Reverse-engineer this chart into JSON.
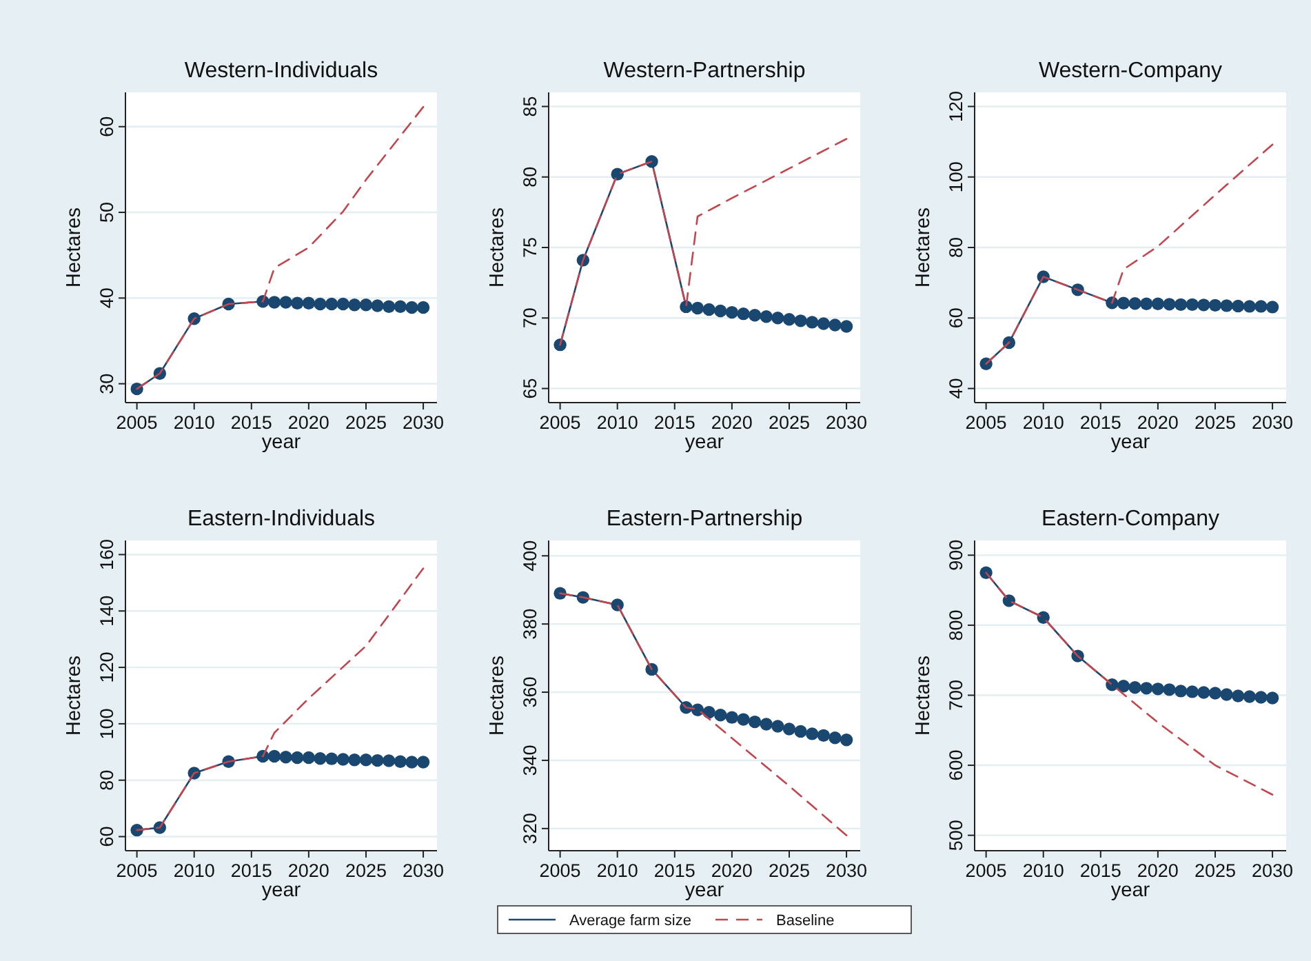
{
  "chart_data": [
    {
      "type": "line",
      "title": "Western-Individuals",
      "xlabel": "year",
      "ylabel": "Hectares",
      "xlim": [
        2004,
        2031.2
      ],
      "xticks": [
        2005,
        2010,
        2015,
        2020,
        2025,
        2030
      ],
      "ylim": [
        27.8,
        64
      ],
      "yticks": [
        30,
        40,
        50,
        60
      ],
      "grid": "y",
      "series": [
        {
          "color": "#1a476f",
          "marker": "circle",
          "line_style": "solid",
          "x": [
            2005,
            2007,
            2010,
            2013,
            2016,
            2017,
            2018,
            2019,
            2020,
            2021,
            2022,
            2023,
            2024,
            2025,
            2026,
            2027,
            2028,
            2029,
            2030
          ],
          "values": [
            29.4,
            31.2,
            37.6,
            39.3,
            39.6,
            39.5,
            39.5,
            39.4,
            39.4,
            39.3,
            39.3,
            39.3,
            39.2,
            39.2,
            39.1,
            39.0,
            39.0,
            38.9,
            38.9
          ]
        },
        {
          "color": "#c1464e",
          "marker": "none",
          "line_style": "dashed",
          "x": [
            2005,
            2007,
            2010,
            2013,
            2016,
            2017,
            2020,
            2023,
            2025,
            2030
          ],
          "values": [
            29.4,
            31.2,
            37.6,
            39.3,
            39.6,
            43.5,
            45.9,
            50.1,
            53.8,
            62.3
          ]
        }
      ]
    },
    {
      "type": "line",
      "title": "Western-Partnership",
      "xlabel": "year",
      "ylabel": "Hectares",
      "xlim": [
        2004,
        2031.2
      ],
      "xticks": [
        2005,
        2010,
        2015,
        2020,
        2025,
        2030
      ],
      "ylim": [
        64,
        86
      ],
      "yticks": [
        65,
        70,
        75,
        80,
        85
      ],
      "grid": "y",
      "series": [
        {
          "color": "#1a476f",
          "marker": "circle",
          "line_style": "solid",
          "x": [
            2005,
            2007,
            2010,
            2013,
            2016,
            2017,
            2018,
            2019,
            2020,
            2021,
            2022,
            2023,
            2024,
            2025,
            2026,
            2027,
            2028,
            2029,
            2030
          ],
          "values": [
            68.1,
            74.1,
            80.2,
            81.1,
            70.8,
            70.7,
            70.6,
            70.5,
            70.4,
            70.3,
            70.2,
            70.1,
            70.0,
            69.9,
            69.8,
            69.7,
            69.6,
            69.5,
            69.4
          ]
        },
        {
          "color": "#c1464e",
          "marker": "none",
          "line_style": "dashed",
          "x": [
            2005,
            2007,
            2010,
            2013,
            2016,
            2017,
            2020,
            2025,
            2030
          ],
          "values": [
            68.1,
            74.1,
            80.2,
            81.1,
            70.8,
            77.2,
            78.5,
            80.6,
            82.7
          ]
        }
      ]
    },
    {
      "type": "line",
      "title": "Western-Company",
      "xlabel": "year",
      "ylabel": "Hectares",
      "xlim": [
        2004,
        2031.2
      ],
      "xticks": [
        2005,
        2010,
        2015,
        2020,
        2025,
        2030
      ],
      "ylim": [
        36,
        124
      ],
      "yticks": [
        40,
        60,
        80,
        100,
        120
      ],
      "grid": "y",
      "series": [
        {
          "color": "#1a476f",
          "marker": "circle",
          "line_style": "solid",
          "x": [
            2005,
            2007,
            2010,
            2013,
            2016,
            2017,
            2018,
            2019,
            2020,
            2021,
            2022,
            2023,
            2024,
            2025,
            2026,
            2027,
            2028,
            2029,
            2030
          ],
          "values": [
            47.0,
            53.0,
            71.7,
            68.0,
            64.3,
            64.2,
            64.1,
            64.0,
            64.0,
            63.9,
            63.8,
            63.8,
            63.7,
            63.6,
            63.5,
            63.4,
            63.3,
            63.3,
            63.1
          ]
        },
        {
          "color": "#c1464e",
          "marker": "none",
          "line_style": "dashed",
          "x": [
            2005,
            2007,
            2010,
            2013,
            2016,
            2017,
            2020,
            2025,
            2030
          ],
          "values": [
            47.0,
            53.0,
            71.7,
            68.0,
            64.3,
            73.8,
            80.3,
            94.9,
            109.2
          ]
        }
      ]
    },
    {
      "type": "line",
      "title": "Eastern-Individuals",
      "xlabel": "year",
      "ylabel": "Hectares",
      "xlim": [
        2004,
        2031.2
      ],
      "xticks": [
        2005,
        2010,
        2015,
        2020,
        2025,
        2030
      ],
      "ylim": [
        55,
        165
      ],
      "yticks": [
        60,
        80,
        100,
        120,
        140,
        160
      ],
      "grid": "y",
      "series": [
        {
          "color": "#1a476f",
          "marker": "circle",
          "line_style": "solid",
          "x": [
            2005,
            2007,
            2010,
            2013,
            2016,
            2017,
            2018,
            2019,
            2020,
            2021,
            2022,
            2023,
            2024,
            2025,
            2026,
            2027,
            2028,
            2029,
            2030
          ],
          "values": [
            62.3,
            63.2,
            82.5,
            86.6,
            88.5,
            88.5,
            88.2,
            88.0,
            88.0,
            87.7,
            87.6,
            87.4,
            87.2,
            87.2,
            87.0,
            86.9,
            86.6,
            86.4,
            86.4
          ]
        },
        {
          "color": "#c1464e",
          "marker": "none",
          "line_style": "dashed",
          "x": [
            2005,
            2007,
            2010,
            2013,
            2016,
            2017,
            2020,
            2025,
            2030
          ],
          "values": [
            62.3,
            63.2,
            82.5,
            86.6,
            88.5,
            96.8,
            109.0,
            127.6,
            155.1
          ]
        }
      ]
    },
    {
      "type": "line",
      "title": "Eastern-Partnership",
      "xlabel": "year",
      "ylabel": "Hectares",
      "xlim": [
        2004,
        2031.2
      ],
      "xticks": [
        2005,
        2010,
        2015,
        2020,
        2025,
        2030
      ],
      "ylim": [
        313.5,
        404.5
      ],
      "yticks": [
        320,
        340,
        360,
        380,
        400
      ],
      "grid": "y",
      "legend": "bottom",
      "series": [
        {
          "name": "Average farm size",
          "color": "#1a476f",
          "marker": "circle",
          "line_style": "solid",
          "x": [
            2005,
            2007,
            2010,
            2013,
            2016,
            2017,
            2018,
            2019,
            2020,
            2021,
            2022,
            2023,
            2024,
            2025,
            2026,
            2027,
            2028,
            2029,
            2030
          ],
          "values": [
            389.0,
            387.8,
            385.6,
            366.7,
            355.5,
            354.8,
            354.1,
            353.3,
            352.6,
            352.0,
            351.3,
            350.6,
            350.0,
            349.2,
            348.5,
            347.8,
            347.3,
            346.6,
            346.0
          ]
        },
        {
          "name": "Baseline",
          "color": "#c1464e",
          "marker": "none",
          "line_style": "dashed",
          "x": [
            2005,
            2007,
            2010,
            2013,
            2016,
            2017,
            2020,
            2025,
            2030
          ],
          "values": [
            389.0,
            387.8,
            385.6,
            366.7,
            355.5,
            355.0,
            346.5,
            332.5,
            318.0
          ]
        }
      ]
    },
    {
      "type": "line",
      "title": "Eastern-Company",
      "xlabel": "year",
      "ylabel": "Hectares",
      "xlim": [
        2004,
        2031.2
      ],
      "xticks": [
        2005,
        2010,
        2015,
        2020,
        2025,
        2030
      ],
      "ylim": [
        478,
        921
      ],
      "yticks": [
        500,
        600,
        700,
        800,
        900
      ],
      "grid": "y",
      "series": [
        {
          "color": "#1a476f",
          "marker": "circle",
          "line_style": "solid",
          "x": [
            2005,
            2007,
            2010,
            2013,
            2016,
            2017,
            2018,
            2019,
            2020,
            2021,
            2022,
            2023,
            2024,
            2025,
            2026,
            2027,
            2028,
            2029,
            2030
          ],
          "values": [
            875,
            835,
            811,
            756,
            715,
            713,
            711,
            710,
            709,
            708,
            706,
            705,
            704,
            703,
            701,
            699,
            698,
            697,
            696
          ]
        },
        {
          "color": "#c1464e",
          "marker": "none",
          "line_style": "dashed",
          "x": [
            2005,
            2007,
            2010,
            2013,
            2016,
            2020,
            2025,
            2030
          ],
          "values": [
            875,
            835,
            811,
            756,
            715,
            661,
            600,
            558
          ]
        }
      ]
    }
  ]
}
